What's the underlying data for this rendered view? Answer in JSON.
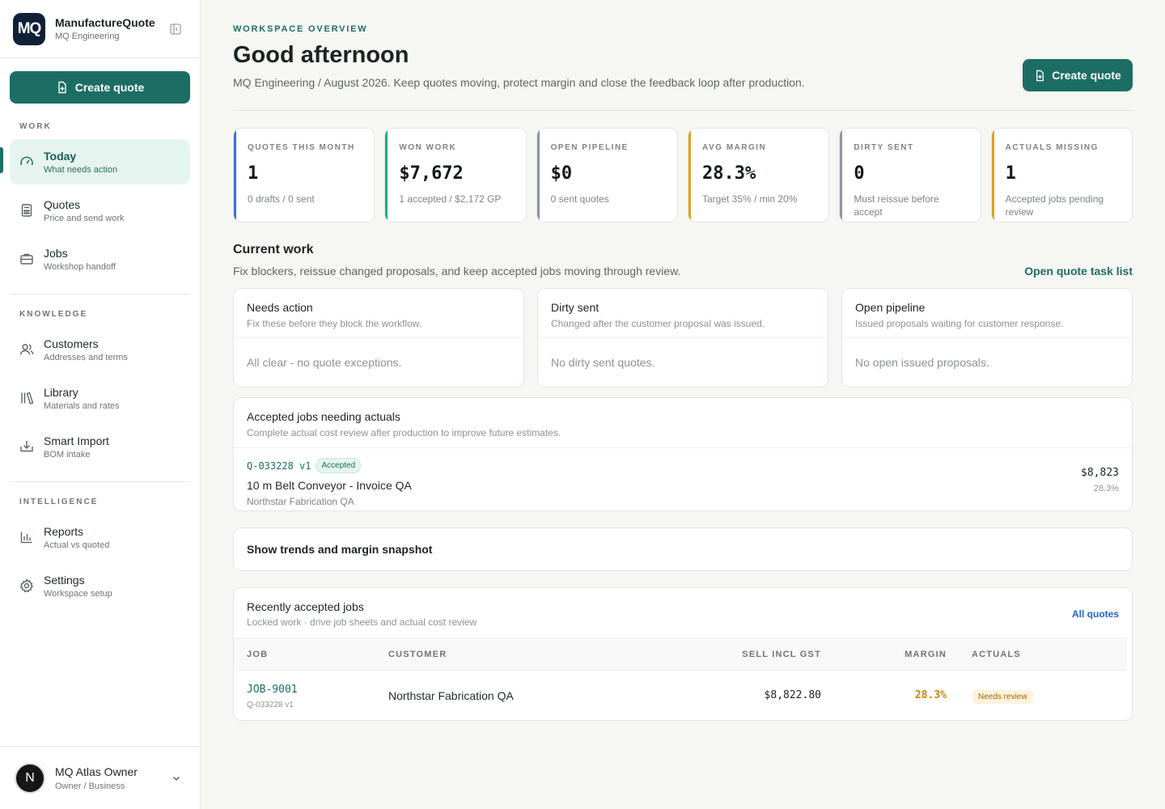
{
  "brand": {
    "logo": "MQ",
    "name": "ManufactureQuote",
    "org": "MQ Engineering"
  },
  "sidebar": {
    "create_label": "Create quote",
    "sections": {
      "work": "WORK",
      "knowledge": "KNOWLEDGE",
      "intelligence": "INTELLIGENCE"
    },
    "items": [
      {
        "label": "Today",
        "sub": "What needs action",
        "icon": "gauge-icon",
        "active": true
      },
      {
        "label": "Quotes",
        "sub": "Price and send work",
        "icon": "calculator-icon"
      },
      {
        "label": "Jobs",
        "sub": "Workshop handoff",
        "icon": "briefcase-icon"
      },
      {
        "label": "Customers",
        "sub": "Addresses and terms",
        "icon": "users-icon"
      },
      {
        "label": "Library",
        "sub": "Materials and rates",
        "icon": "library-icon"
      },
      {
        "label": "Smart Import",
        "sub": "BOM intake",
        "icon": "import-icon"
      },
      {
        "label": "Reports",
        "sub": "Actual vs quoted",
        "icon": "bar-chart-icon"
      },
      {
        "label": "Settings",
        "sub": "Workspace setup",
        "icon": "gear-icon"
      }
    ],
    "user": {
      "initial": "N",
      "name": "MQ Atlas Owner",
      "role": "Owner / Business"
    }
  },
  "header": {
    "eyebrow": "WORKSPACE OVERVIEW",
    "title": "Good afternoon",
    "subtitle": "MQ Engineering / August 2026. Keep quotes moving, protect margin and close the feedback loop after production.",
    "create_label": "Create quote"
  },
  "kpis": [
    {
      "label": "QUOTES THIS MONTH",
      "value": "1",
      "sub": "0 drafts / 0 sent",
      "color": "#3b6fd4"
    },
    {
      "label": "WON WORK",
      "value": "$7,672",
      "sub": "1 accepted / $2,172 GP",
      "color": "#1fae84"
    },
    {
      "label": "OPEN PIPELINE",
      "value": "$0",
      "sub": "0 sent quotes",
      "color": "#8a96a8"
    },
    {
      "label": "AVG MARGIN",
      "value": "28.3%",
      "sub": "Target 35% / min 20%",
      "color": "#e0a21a"
    },
    {
      "label": "DIRTY SENT",
      "value": "0",
      "sub": "Must reissue before accept",
      "color": "#8a96a8"
    },
    {
      "label": "ACTUALS MISSING",
      "value": "1",
      "sub": "Accepted jobs pending review",
      "color": "#e0a21a"
    }
  ],
  "current_work": {
    "title": "Current work",
    "sub": "Fix blockers, reissue changed proposals, and keep accepted jobs moving through review.",
    "link": "Open quote task list",
    "panels": [
      {
        "title": "Needs action",
        "sub": "Fix these before they block the workflow.",
        "empty": "All clear - no quote exceptions."
      },
      {
        "title": "Dirty sent",
        "sub": "Changed after the customer proposal was issued.",
        "empty": "No dirty sent quotes."
      },
      {
        "title": "Open pipeline",
        "sub": "Issued proposals waiting for customer response.",
        "empty": "No open issued proposals."
      }
    ]
  },
  "accepted": {
    "title": "Accepted jobs needing actuals",
    "sub": "Complete actual cost review after production to improve future estimates.",
    "row": {
      "ref": "Q-033228 v1",
      "status": "Accepted",
      "job": "10 m Belt Conveyor - Invoice QA",
      "customer": "Northstar Fabrication QA",
      "amount": "$8,823",
      "margin": "28.3%"
    }
  },
  "trends": {
    "label": "Show trends and margin snapshot"
  },
  "recent": {
    "title": "Recently accepted jobs",
    "sub": "Locked work · drive job sheets and actual cost review",
    "link": "All quotes",
    "columns": {
      "job": "JOB",
      "customer": "CUSTOMER",
      "sell": "SELL INCL GST",
      "margin": "MARGIN",
      "actuals": "ACTUALS"
    },
    "rows": [
      {
        "job": "JOB-9001",
        "quote": "Q-033228 v1",
        "customer": "Northstar Fabrication QA",
        "sell": "$8,822.80",
        "margin": "28.3%",
        "actuals": "Needs review"
      }
    ]
  }
}
